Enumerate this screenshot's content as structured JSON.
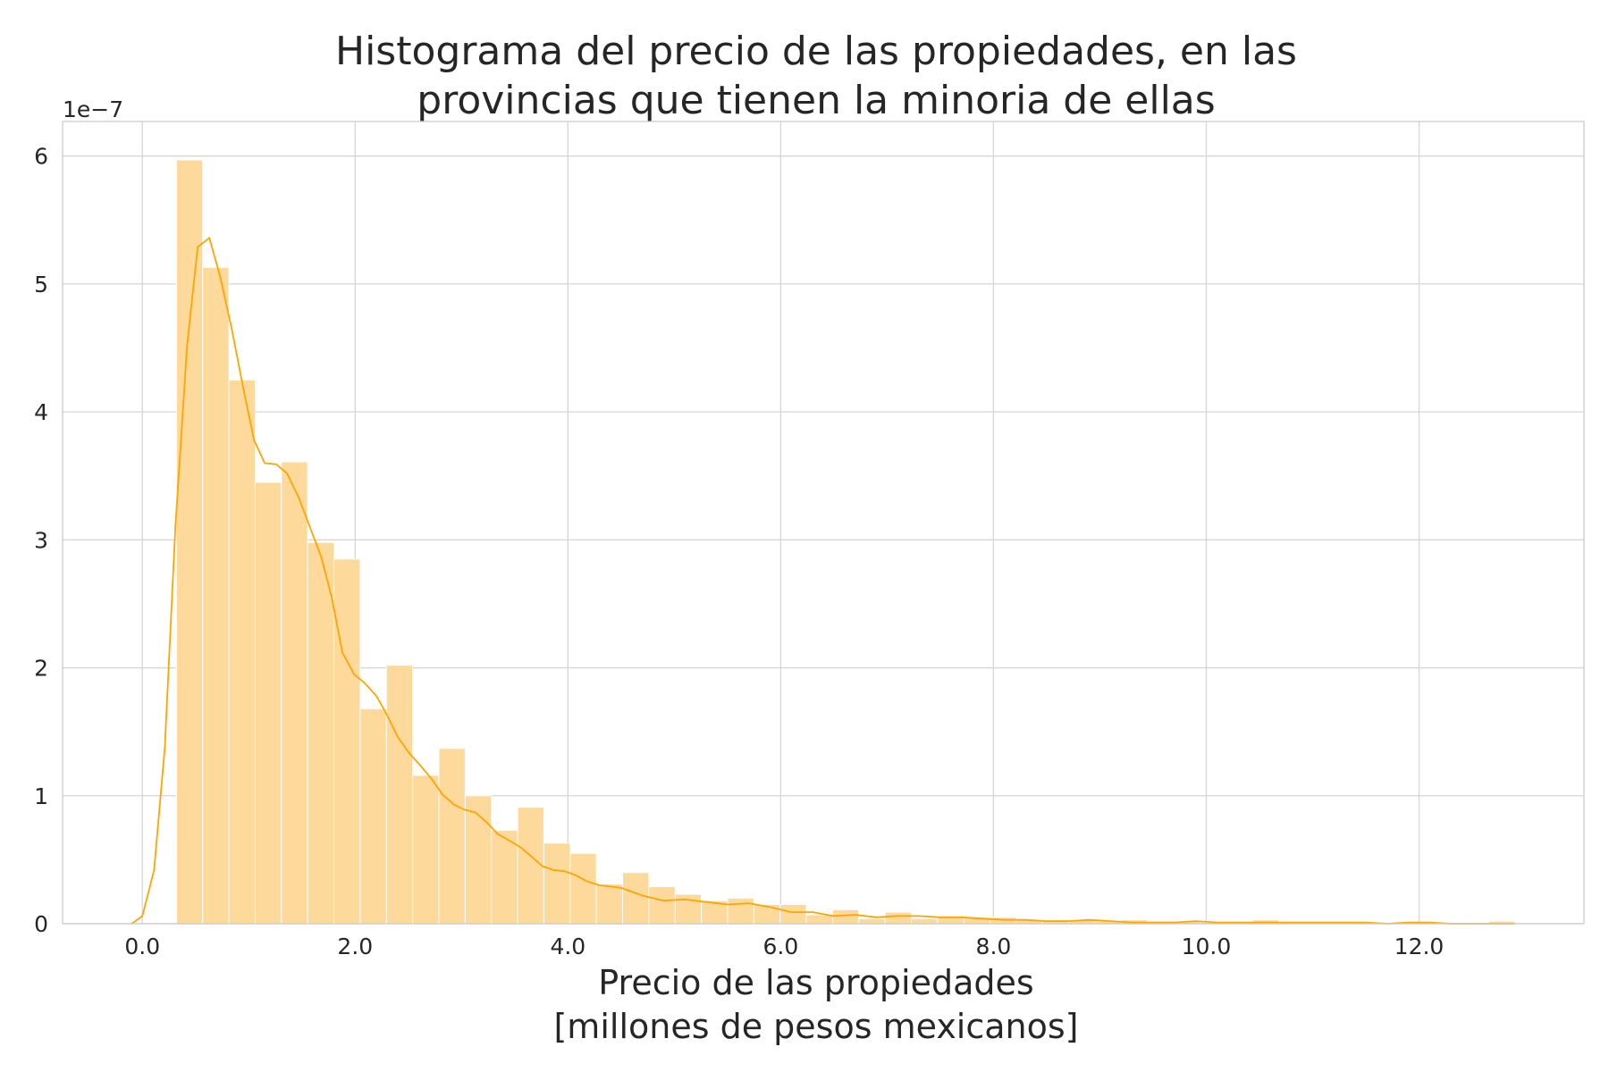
{
  "chart_data": {
    "type": "bar",
    "title_lines": [
      "Histograma del precio de las propiedades, en las",
      "provincias que tienen la minoria de ellas"
    ],
    "xlabel_lines": [
      "Precio de las propiedades",
      "[millones de pesos mexicanos]"
    ],
    "ylabel": "",
    "y_offset_label": "1e−7",
    "xlim": [
      -0.75,
      13.55
    ],
    "ylim": [
      0,
      6.27
    ],
    "x_ticks": [
      0,
      2,
      4,
      6,
      8,
      10,
      12
    ],
    "x_tick_labels": [
      "0.0",
      "2.0",
      "4.0",
      "6.0",
      "8.0",
      "10.0",
      "12.0"
    ],
    "y_ticks": [
      0,
      1,
      2,
      3,
      4,
      5,
      6
    ],
    "y_tick_labels": [
      "0",
      "1",
      "2",
      "3",
      "4",
      "5",
      "6"
    ],
    "grid": true,
    "colors": {
      "bar": "#fdd99b",
      "bar_edge": "#ffffff",
      "kde": "#ffa500",
      "grid": "#d6d6d6",
      "axes": "#cccccc"
    },
    "histogram": {
      "bin_start": 0.32,
      "bin_width": 0.2467,
      "values": [
        5.97,
        5.13,
        4.25,
        3.45,
        3.61,
        2.98,
        2.85,
        1.68,
        2.02,
        1.16,
        1.37,
        1.0,
        0.73,
        0.91,
        0.63,
        0.55,
        0.31,
        0.4,
        0.29,
        0.23,
        0.18,
        0.2,
        0.15,
        0.15,
        0.07,
        0.11,
        0.04,
        0.09,
        0.04,
        0.06,
        0.05,
        0.05,
        0.03,
        0.03,
        0.03,
        0.02,
        0.03,
        0.02,
        0.02,
        0.01,
        0.01,
        0.03,
        0.01,
        0.01,
        0.01,
        0.01,
        0.01,
        0.01,
        0.01,
        0.0,
        0.02,
        0.0,
        0.0
      ]
    },
    "kde": {
      "x": [
        -0.1,
        0.0,
        0.11,
        0.21,
        0.31,
        0.42,
        0.52,
        0.63,
        0.73,
        0.84,
        0.95,
        1.05,
        1.15,
        1.26,
        1.36,
        1.47,
        1.57,
        1.68,
        1.78,
        1.88,
        1.99,
        2.09,
        2.2,
        2.3,
        2.4,
        2.51,
        2.61,
        2.72,
        2.82,
        2.93,
        3.03,
        3.13,
        3.24,
        3.34,
        3.45,
        3.55,
        3.65,
        3.76,
        3.86,
        3.97,
        4.07,
        4.18,
        4.3,
        4.5,
        4.7,
        4.9,
        5.1,
        5.3,
        5.5,
        5.7,
        5.9,
        6.1,
        6.3,
        6.5,
        6.7,
        6.9,
        7.1,
        7.3,
        7.5,
        7.7,
        7.9,
        8.1,
        8.3,
        8.5,
        8.7,
        8.9,
        9.1,
        9.3,
        9.5,
        9.7,
        9.9,
        10.1,
        10.3,
        10.5,
        10.7,
        10.9,
        11.1,
        11.3,
        11.5,
        11.7,
        11.9,
        12.1,
        12.3,
        12.5,
        12.7,
        12.9
      ],
      "y": [
        0.0,
        0.06,
        0.42,
        1.37,
        3.1,
        4.52,
        5.29,
        5.36,
        5.06,
        4.65,
        4.18,
        3.78,
        3.6,
        3.59,
        3.52,
        3.33,
        3.11,
        2.87,
        2.55,
        2.12,
        1.95,
        1.88,
        1.78,
        1.63,
        1.46,
        1.33,
        1.24,
        1.13,
        1.01,
        0.93,
        0.89,
        0.87,
        0.79,
        0.7,
        0.65,
        0.6,
        0.53,
        0.45,
        0.42,
        0.41,
        0.38,
        0.33,
        0.3,
        0.28,
        0.22,
        0.18,
        0.19,
        0.17,
        0.15,
        0.16,
        0.13,
        0.09,
        0.09,
        0.06,
        0.07,
        0.05,
        0.06,
        0.06,
        0.05,
        0.05,
        0.04,
        0.03,
        0.03,
        0.02,
        0.02,
        0.03,
        0.02,
        0.01,
        0.01,
        0.01,
        0.02,
        0.01,
        0.01,
        0.01,
        0.01,
        0.01,
        0.01,
        0.01,
        0.01,
        0.0,
        0.01,
        0.01,
        0.0,
        0.0,
        0.0,
        0.0
      ]
    }
  }
}
